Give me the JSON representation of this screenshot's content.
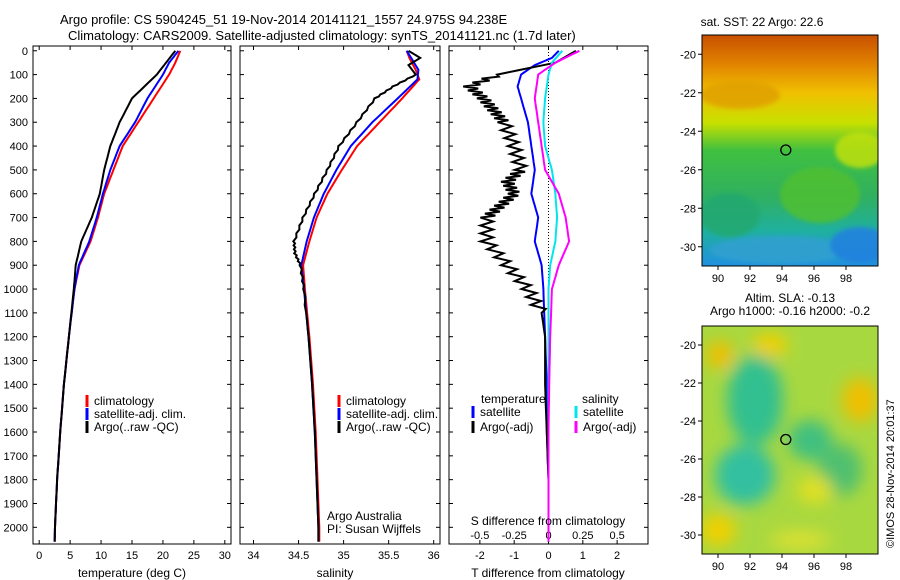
{
  "header": {
    "line1": "Argo profile: CS 5904245_51 19-Nov-2014 20141121_1557 24.975S 94.238E",
    "line2": "Climatology: CARS2009. Satellite-adjusted climatology: synTS_20141121.nc (1.7d later)"
  },
  "colors": {
    "climatology": "#ff0000",
    "satellite": "#0000ff",
    "argo": "#000000",
    "sat_salinity": "#00e5ee",
    "argo_salinity": "#ff00ff"
  },
  "chart_data": [
    {
      "type": "line",
      "id": "temperature",
      "xlabel": "temperature (deg C)",
      "xlim": [
        -1,
        31
      ],
      "xticks": [
        0,
        5,
        10,
        15,
        20,
        25,
        30
      ],
      "ylim": [
        2070,
        -20
      ],
      "yticks": [
        0,
        100,
        200,
        300,
        400,
        500,
        600,
        700,
        800,
        900,
        1000,
        1100,
        1200,
        1300,
        1400,
        1500,
        1600,
        1700,
        1800,
        1900,
        2000
      ],
      "legend": [
        "climatology",
        "satellite-adj. clim.",
        "Argo(..raw -QC)"
      ],
      "series": [
        {
          "name": "climatology",
          "color": "#ff0000",
          "depth": [
            0,
            50,
            100,
            200,
            300,
            400,
            500,
            600,
            700,
            800,
            900,
            1000,
            1200,
            1400,
            1600,
            1800,
            2000,
            2060
          ],
          "values": [
            22.8,
            22.0,
            21,
            18.5,
            16,
            13.5,
            12,
            10.5,
            9.5,
            8.3,
            6.5,
            5.7,
            4.8,
            4.0,
            3.4,
            2.9,
            2.55,
            2.5
          ]
        },
        {
          "name": "satellite",
          "color": "#0000ff",
          "depth": [
            0,
            50,
            100,
            200,
            300,
            400,
            500,
            600,
            700,
            800,
            900,
            1000,
            1200,
            1400,
            1600,
            1800,
            2000,
            2060
          ],
          "values": [
            22.5,
            21.0,
            20,
            17.5,
            15.5,
            13,
            11.5,
            10.3,
            9.3,
            8.1,
            6.4,
            5.7,
            4.8,
            4.0,
            3.4,
            2.9,
            2.55,
            2.5
          ]
        },
        {
          "name": "argo",
          "color": "#000000",
          "depth": [
            0,
            50,
            100,
            200,
            300,
            400,
            500,
            600,
            700,
            800,
            900,
            1000,
            1200,
            1400,
            1600,
            1800,
            2000,
            2060
          ],
          "values": [
            22.0,
            20.5,
            19,
            15,
            13,
            11.5,
            10.5,
            9.8,
            8.5,
            6.8,
            5.9,
            5.6,
            4.8,
            4.0,
            3.4,
            2.9,
            2.55,
            2.5
          ]
        }
      ]
    },
    {
      "type": "line",
      "id": "salinity",
      "xlabel": "salinity",
      "xlim": [
        33.85,
        36.07
      ],
      "xticks": [
        34,
        34.5,
        35,
        35.5,
        36
      ],
      "ylim": [
        2070,
        -20
      ],
      "legend": [
        "climatology",
        "satellite-adj. clim.",
        "Argo(..raw -QC)"
      ],
      "notes": [
        "Argo Australia",
        "PI: Susan Wijffels"
      ],
      "series": [
        {
          "name": "climatology",
          "color": "#ff0000",
          "depth": [
            0,
            30,
            80,
            120,
            200,
            300,
            400,
            500,
            600,
            700,
            800,
            900,
            1000,
            1200,
            1400,
            1600,
            1800,
            2000,
            2060
          ],
          "values": [
            35.7,
            35.73,
            35.8,
            35.84,
            35.65,
            35.4,
            35.15,
            34.98,
            34.82,
            34.7,
            34.62,
            34.55,
            34.57,
            34.62,
            34.66,
            34.69,
            34.71,
            34.73,
            34.73
          ]
        },
        {
          "name": "satellite",
          "color": "#0000ff",
          "depth": [
            0,
            30,
            80,
            120,
            200,
            300,
            400,
            500,
            600,
            700,
            800,
            900,
            1000,
            1200,
            1400,
            1600,
            1800,
            2000,
            2060
          ],
          "values": [
            35.7,
            35.75,
            35.83,
            35.82,
            35.6,
            35.32,
            35.08,
            34.92,
            34.78,
            34.67,
            34.59,
            34.53,
            34.56,
            34.61,
            34.65,
            34.68,
            34.7,
            34.72,
            34.72
          ]
        },
        {
          "name": "argo",
          "color": "#000000",
          "depth": [
            0,
            30,
            60,
            100,
            150,
            200,
            300,
            400,
            500,
            600,
            700,
            800,
            850,
            900,
            1000,
            1200,
            1400,
            1600,
            1800,
            2000,
            2060
          ],
          "values": [
            35.72,
            35.85,
            35.72,
            35.8,
            35.55,
            35.35,
            35.15,
            34.95,
            34.82,
            34.68,
            34.55,
            34.45,
            34.46,
            34.52,
            34.56,
            34.61,
            34.65,
            34.68,
            34.7,
            34.72,
            34.72
          ]
        }
      ]
    },
    {
      "type": "line",
      "id": "difference",
      "xlabel": "T difference from climatology",
      "xlabel_top": "S difference from climatology",
      "xlim": [
        -2.9,
        2.9
      ],
      "xticks": [
        -2,
        -1,
        0,
        1,
        2
      ],
      "xticks_top": [
        "-0.5",
        "-0.25",
        "0",
        "0.25",
        "0.5"
      ],
      "ylim": [
        2070,
        -20
      ],
      "legend_headers": [
        "temperature",
        "salinity"
      ],
      "legend": [
        "satellite",
        "Argo(-adj)",
        "satellite",
        "Argo(-adj)"
      ],
      "series": [
        {
          "name": "T satellite",
          "color": "#0000ff",
          "depth": [
            0,
            30,
            60,
            100,
            150,
            200,
            300,
            400,
            500,
            600,
            700,
            800,
            900,
            1000,
            1200,
            1400,
            1600,
            1800,
            2000,
            2060
          ],
          "values": [
            0.3,
            0.1,
            -0.4,
            -0.8,
            -0.9,
            -0.8,
            -0.6,
            -0.5,
            -0.4,
            -0.5,
            -0.3,
            -0.4,
            -0.2,
            -0.15,
            -0.1,
            -0.05,
            -0.05,
            0,
            0,
            0
          ]
        },
        {
          "name": "T argo",
          "color": "#000000",
          "depth": [
            0,
            50,
            100,
            150,
            200,
            250,
            300,
            400,
            500,
            550,
            600,
            650,
            700,
            800,
            900,
            1000,
            1100,
            1200,
            1400,
            1600,
            1800,
            2000,
            2060
          ],
          "values": [
            0.8,
            0.2,
            -1.5,
            -2.3,
            -1.9,
            -1.6,
            -1.3,
            -1.0,
            -0.8,
            -1.2,
            -1.0,
            -1.4,
            -1.8,
            -1.8,
            -1.2,
            -0.6,
            -0.2,
            -0.1,
            -0.1,
            -0.05,
            0,
            0,
            0
          ]
        },
        {
          "name": "S satellite",
          "color": "#00e5ee",
          "depth": [
            0,
            50,
            100,
            200,
            300,
            400,
            500,
            600,
            700,
            800,
            900,
            1000,
            1200,
            1400,
            1600,
            1800,
            2000,
            2060
          ],
          "values": [
            0.4,
            0.1,
            0,
            -0.1,
            -0.15,
            -0.1,
            0.1,
            0.2,
            0.25,
            0.2,
            0.05,
            0,
            0,
            0,
            0,
            0,
            0,
            0
          ]
        },
        {
          "name": "S argo",
          "color": "#ff00ff",
          "depth": [
            0,
            50,
            100,
            200,
            300,
            400,
            500,
            600,
            700,
            800,
            900,
            1000,
            1200,
            1400,
            1600,
            1800,
            2000,
            2060
          ],
          "values": [
            0.9,
            0.2,
            -0.3,
            -0.4,
            -0.3,
            -0.2,
            -0.1,
            0.3,
            0.5,
            0.6,
            0.3,
            0.1,
            0.05,
            0.02,
            0,
            0,
            0,
            0
          ]
        }
      ]
    },
    {
      "type": "heatmap",
      "id": "sst_map",
      "title": "sat. SST: 22 Argo: 22.6",
      "xlim": [
        89,
        100
      ],
      "ylim": [
        -31,
        -19
      ],
      "xticks": [
        90,
        92,
        94,
        96,
        98
      ],
      "yticks": [
        -20,
        -22,
        -24,
        -26,
        -28,
        -30
      ],
      "marker": {
        "lon": 94.238,
        "lat": -24.975
      }
    },
    {
      "type": "heatmap",
      "id": "sla_map",
      "title_line1": "Altim. SLA: -0.13",
      "title_line2": "Argo h1000: -0.16 h2000: -0.2",
      "xlim": [
        89,
        100
      ],
      "ylim": [
        -31,
        -19
      ],
      "xticks": [
        90,
        92,
        94,
        96,
        98
      ],
      "yticks": [
        -20,
        -22,
        -24,
        -26,
        -28,
        -30
      ],
      "marker": {
        "lon": 94.238,
        "lat": -24.975
      }
    }
  ],
  "footer": {
    "stamp": "©IMOS 28-Nov-2014 20:01:37"
  }
}
